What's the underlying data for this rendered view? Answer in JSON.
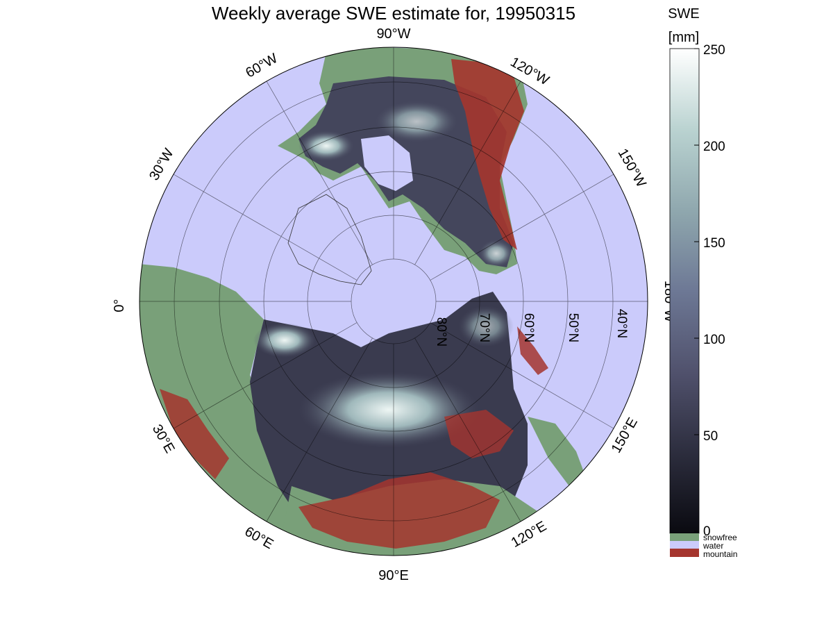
{
  "title": "Weekly average SWE estimate for, 19950315",
  "colorbar": {
    "title_line1": "SWE",
    "title_line2": "[mm]",
    "ticks": [
      "0",
      "50",
      "100",
      "150",
      "200",
      "250"
    ],
    "range": [
      0,
      250
    ],
    "gradient": [
      "#0a0a10",
      "#2b2c3c",
      "#50516c",
      "#6d7895",
      "#8ea6ad",
      "#b9d2d0",
      "#ffffff"
    ],
    "categories": [
      {
        "label": "snowfree",
        "color": "#79a079"
      },
      {
        "label": "water",
        "color": "#cbcbfb"
      },
      {
        "label": "mountain",
        "color": "#a5352e"
      }
    ]
  },
  "map": {
    "projection": "north-polar",
    "water_color": "#cbcbfb",
    "snowfree_color": "#79a079",
    "mountain_color": "#a5352e",
    "longitude_labels": [
      {
        "text": "90°W",
        "lon": -90
      },
      {
        "text": "120°W",
        "lon": -120
      },
      {
        "text": "150°W",
        "lon": -150
      },
      {
        "text": "180°W",
        "lon": 180
      },
      {
        "text": "150°E",
        "lon": 150
      },
      {
        "text": "120°E",
        "lon": 120
      },
      {
        "text": "90°E",
        "lon": 90
      },
      {
        "text": "60°E",
        "lon": 60
      },
      {
        "text": "30°E",
        "lon": 30
      },
      {
        "text": "0°",
        "lon": 0
      },
      {
        "text": "30°W",
        "lon": -30
      },
      {
        "text": "60°W",
        "lon": -60
      }
    ],
    "latitude_labels": [
      {
        "text": "80°N",
        "lat": 80
      },
      {
        "text": "70°N",
        "lat": 70
      },
      {
        "text": "60°N",
        "lat": 60
      },
      {
        "text": "50°N",
        "lat": 50
      },
      {
        "text": "40°N",
        "lat": 40
      }
    ]
  }
}
